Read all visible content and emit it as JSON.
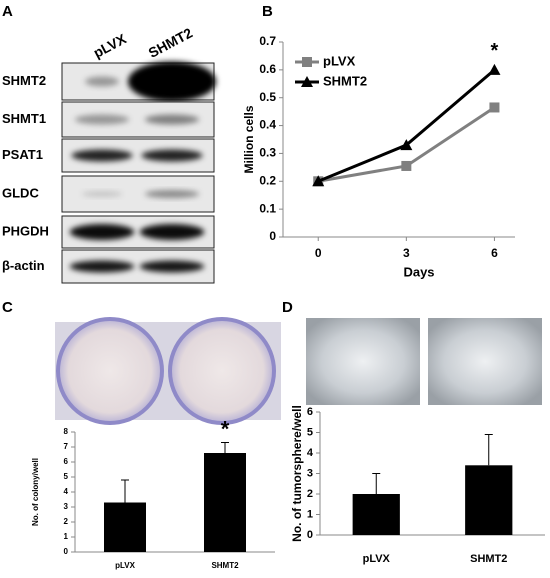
{
  "panels": [
    "A",
    "B",
    "C",
    "D"
  ],
  "blot": {
    "columns": [
      "pLVX",
      "SHMT2"
    ],
    "rows": [
      "SHMT2",
      "SHMT1",
      "PSAT1",
      "GLDC",
      "PHGDH",
      "β-actin"
    ]
  },
  "chart_data": [
    {
      "type": "line",
      "x": [
        0,
        3,
        6
      ],
      "xlim": [
        -1.2,
        6.7
      ],
      "xticks": [
        0,
        3,
        6
      ],
      "ylim": [
        0,
        0.7
      ],
      "yticks": [
        0,
        0.1,
        0.2,
        0.3,
        0.4,
        0.5,
        0.6,
        0.7
      ],
      "x_label": "Days",
      "y_label": "Million cells",
      "legend": "upper left",
      "series": [
        {
          "name": "pLVX",
          "color": "#808080",
          "marker": "square",
          "values": [
            0.2,
            0.255,
            0.465
          ]
        },
        {
          "name": "SHMT2",
          "color": "#000000",
          "marker": "triangle",
          "values": [
            0.2,
            0.33,
            0.6
          ]
        }
      ],
      "annotations": [
        {
          "text": "*",
          "x": 6
        }
      ]
    },
    {
      "type": "bar",
      "categories": [
        "pLVX",
        "SHMT2"
      ],
      "values": [
        3.3,
        6.6
      ],
      "errors": [
        1.5,
        0.7
      ],
      "color": "#000000",
      "ylim": [
        0,
        8
      ],
      "yticks": [
        0,
        1,
        2,
        3,
        4,
        5,
        6,
        7,
        8
      ],
      "y_label": "No. of colony/well",
      "annotations": [
        {
          "text": "*",
          "category": "SHMT2"
        }
      ]
    },
    {
      "type": "bar",
      "categories": [
        "pLVX",
        "SHMT2"
      ],
      "values": [
        2.0,
        3.4
      ],
      "errors": [
        1.0,
        1.5
      ],
      "color": "#000000",
      "ylim": [
        0,
        6
      ],
      "yticks": [
        0,
        1,
        2,
        3,
        4,
        5,
        6
      ],
      "y_label": "No. of tumorsphere/well"
    }
  ]
}
